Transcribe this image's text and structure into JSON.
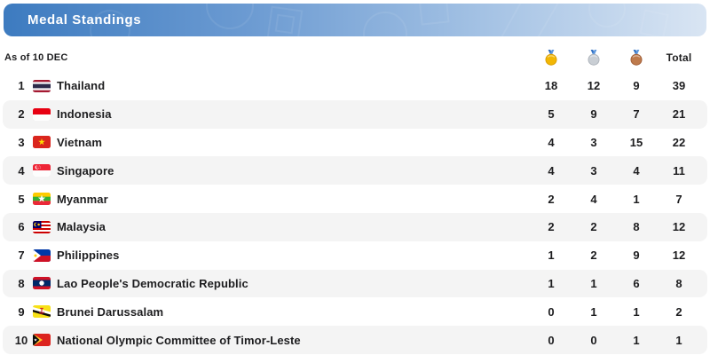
{
  "header": {
    "title": "Medal Standings"
  },
  "colors": {
    "header_gradient_start": "#3D7BC0",
    "header_gradient_end": "#D9E5F3",
    "row_alt_background": "#F4F4F4",
    "text": "#1D1D1F",
    "gold": "#F2B705",
    "silver": "#C4C9CF",
    "bronze": "#B97447",
    "ribbon_blue": "#3B7FD4"
  },
  "table": {
    "as_of": "As of 10 DEC",
    "column_icons": [
      "gold-medal-icon",
      "silver-medal-icon",
      "bronze-medal-icon"
    ],
    "total_label": "Total",
    "rows": [
      {
        "rank": "1",
        "flag": "thailand-flag-icon",
        "country": "Thailand",
        "gold": "18",
        "silver": "12",
        "bronze": "9",
        "total": "39"
      },
      {
        "rank": "2",
        "flag": "indonesia-flag-icon",
        "country": "Indonesia",
        "gold": "5",
        "silver": "9",
        "bronze": "7",
        "total": "21"
      },
      {
        "rank": "3",
        "flag": "vietnam-flag-icon",
        "country": "Vietnam",
        "gold": "4",
        "silver": "3",
        "bronze": "15",
        "total": "22"
      },
      {
        "rank": "4",
        "flag": "singapore-flag-icon",
        "country": "Singapore",
        "gold": "4",
        "silver": "3",
        "bronze": "4",
        "total": "11"
      },
      {
        "rank": "5",
        "flag": "myanmar-flag-icon",
        "country": "Myanmar",
        "gold": "2",
        "silver": "4",
        "bronze": "1",
        "total": "7"
      },
      {
        "rank": "6",
        "flag": "malaysia-flag-icon",
        "country": "Malaysia",
        "gold": "2",
        "silver": "2",
        "bronze": "8",
        "total": "12"
      },
      {
        "rank": "7",
        "flag": "philippines-flag-icon",
        "country": "Philippines",
        "gold": "1",
        "silver": "2",
        "bronze": "9",
        "total": "12"
      },
      {
        "rank": "8",
        "flag": "laos-flag-icon",
        "country": "Lao People's Democratic Republic",
        "gold": "1",
        "silver": "1",
        "bronze": "6",
        "total": "8"
      },
      {
        "rank": "9",
        "flag": "brunei-flag-icon",
        "country": "Brunei Darussalam",
        "gold": "0",
        "silver": "1",
        "bronze": "1",
        "total": "2"
      },
      {
        "rank": "10",
        "flag": "timor-leste-flag-icon",
        "country": "National Olympic Committee of Timor-Leste",
        "gold": "0",
        "silver": "0",
        "bronze": "1",
        "total": "1"
      }
    ]
  }
}
